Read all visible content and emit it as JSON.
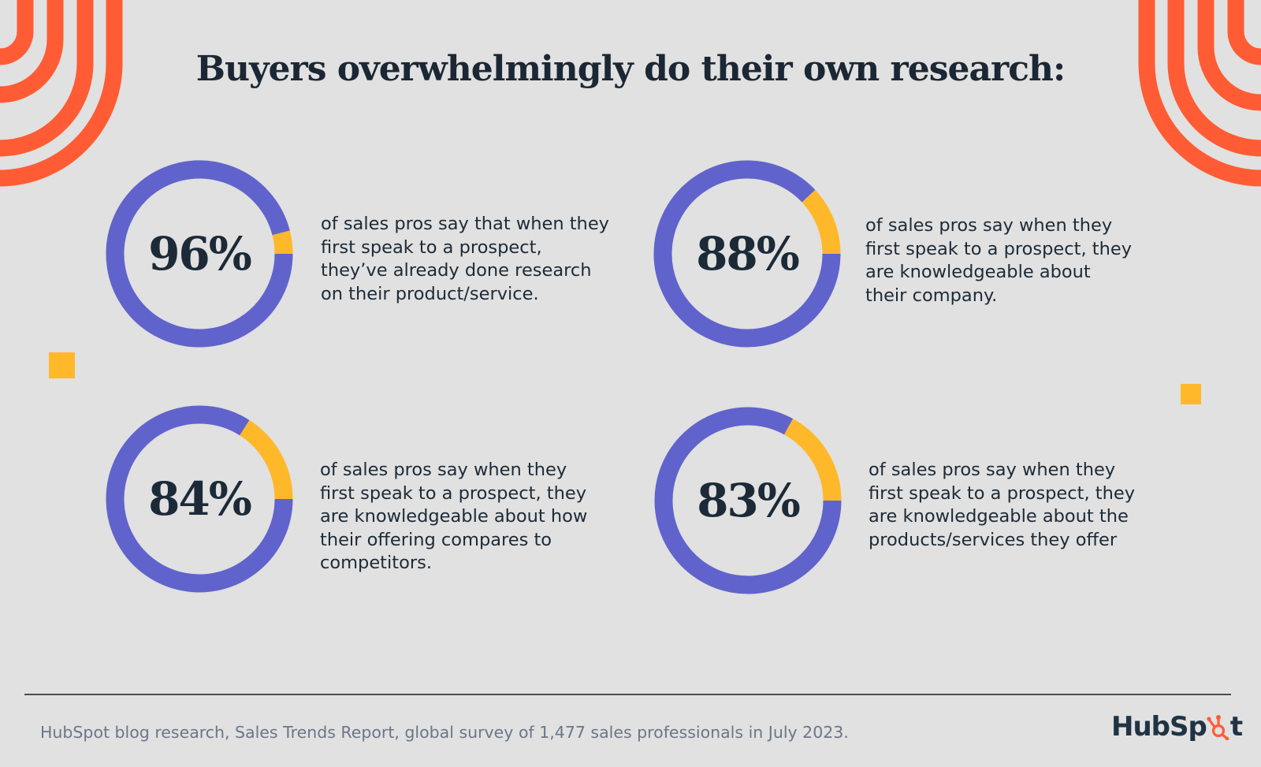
{
  "title": "Buyers overwhelmingly do their own research:",
  "colors": {
    "background": "#e0e1e0",
    "primary_ring": "#6163cc",
    "accent_ring": "#ffb829",
    "decor_orange": "#ff5c35",
    "text": "#1c2735"
  },
  "chart_data": {
    "type": "pie",
    "subtype": "donut",
    "title": "Buyers overwhelmingly do their own research:",
    "items": [
      {
        "label": "96%",
        "value": 96,
        "remainder": 4,
        "text": "of sales pros say that when they first speak to a prospect, they’ve already done research on their product/service.",
        "lines": [
          "of sales pros say that when they",
          "first speak to a prospect,",
          "they’ve already done research",
          "on their product/service."
        ]
      },
      {
        "label": "88%",
        "value": 88,
        "remainder": 12,
        "text": "of sales pros say when they first speak to a prospect, they are knowledgeable about their company.",
        "lines": [
          "of sales pros say when they",
          "first speak to a prospect, they",
          "are knowledgeable about",
          "their company."
        ]
      },
      {
        "label": "84%",
        "value": 84,
        "remainder": 16,
        "text": "of sales pros say when they first speak to a prospect, they are knowledgeable about how their offering compares to competitors.",
        "lines": [
          "of sales pros say when they",
          "first speak to a prospect, they",
          "are knowledgeable about how",
          "their offering compares to",
          "competitors."
        ]
      },
      {
        "label": "83%",
        "value": 83,
        "remainder": 17,
        "text": "of sales pros say when they first speak to a prospect, they are knowledgeable about the products/services they offer",
        "lines": [
          "of sales pros say when they",
          "first speak to a prospect, they",
          "are knowledgeable about the",
          "products/services they offer"
        ]
      }
    ]
  },
  "footer": {
    "source": "HubSpot blog research, Sales Trends Report, global survey of 1,477 sales professionals in July 2023.",
    "logo_text_left": "HubSp",
    "logo_text_right": "t"
  }
}
